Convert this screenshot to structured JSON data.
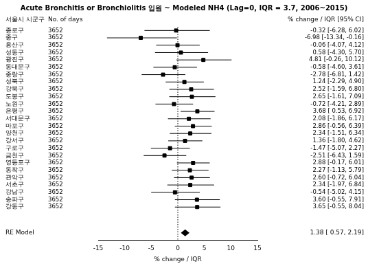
{
  "chart_data": {
    "type": "forest",
    "title": "Acute Bronchitis or Bronchiolitis 입원 ~ Modeled NH4 (Lag=0, IQR = 3.7, 2006~2015)",
    "column_headers": [
      "서울시 시군구",
      "No. of days",
      "% change / IQR [95% CI]"
    ],
    "categories": [
      "종로구",
      "중구",
      "용산구",
      "성동구",
      "광진구",
      "동대문구",
      "중랑구",
      "성북구",
      "강북구",
      "도봉구",
      "노원구",
      "은평구",
      "서대문구",
      "마포구",
      "양천구",
      "강서구",
      "구로구",
      "금천구",
      "영등포구",
      "동작구",
      "관악구",
      "서초구",
      "강남구",
      "송파구",
      "강동구"
    ],
    "days": [
      3652,
      3652,
      3652,
      3652,
      3652,
      3652,
      3652,
      3652,
      3652,
      3652,
      3652,
      3652,
      3652,
      3652,
      3652,
      3652,
      3652,
      3652,
      3652,
      3652,
      3652,
      3652,
      3652,
      3652,
      3652
    ],
    "values": [
      -0.32,
      -6.98,
      -0.06,
      0.58,
      4.81,
      -0.58,
      -2.78,
      1.24,
      2.52,
      2.65,
      -0.72,
      3.68,
      2.08,
      2.86,
      2.34,
      1.36,
      -1.47,
      -2.51,
      2.88,
      2.27,
      2.6,
      2.34,
      -0.54,
      3.6,
      3.65
    ],
    "lower": [
      -6.28,
      -13.34,
      -4.07,
      -4.3,
      -0.26,
      -4.6,
      -6.81,
      -2.29,
      -1.59,
      -1.61,
      -4.21,
      0.53,
      -1.86,
      -0.56,
      -1.51,
      -1.8,
      -5.07,
      -6.43,
      -0.17,
      -1.13,
      -0.72,
      -1.97,
      -5.02,
      -0.55,
      -0.55
    ],
    "upper": [
      6.02,
      -0.16,
      4.12,
      5.7,
      10.12,
      3.61,
      1.42,
      4.9,
      6.8,
      7.09,
      2.89,
      6.92,
      6.17,
      6.39,
      6.34,
      4.62,
      2.27,
      1.59,
      6.01,
      5.79,
      6.04,
      6.84,
      4.15,
      7.91,
      8.04
    ],
    "value_labels": [
      "-0.32 [-6.28, 6.02]",
      "-6.98 [-13.34, -0.16]",
      "-0.06 [-4.07, 4.12]",
      "0.58 [-4.30, 5.70]",
      "4.81 [-0.26, 10.12]",
      "-0.58 [-4.60, 3.61]",
      "-2.78 [-6.81, 1.42]",
      "1.24 [-2.29, 4.90]",
      "2.52 [-1.59, 6.80]",
      "2.65 [-1.61, 7.09]",
      "-0.72 [-4.21, 2.89]",
      "3.68 [ 0.53, 6.92]",
      "2.08 [-1.86, 6.17]",
      "2.86 [-0.56, 6.39]",
      "2.34 [-1.51, 6.34]",
      "1.36 [-1.80, 4.62]",
      "-1.47 [-5.07, 2.27]",
      "-2.51 [-6.43, 1.59]",
      "2.88 [-0.17, 6.01]",
      "2.27 [-1.13, 5.79]",
      "2.60 [-0.72, 6.04]",
      "2.34 [-1.97, 6.84]",
      "-0.54 [-5.02, 4.15]",
      "3.60 [-0.55, 7.91]",
      "3.65 [-0.55, 8.04]"
    ],
    "summary": {
      "name": "RE Model",
      "value": 1.38,
      "lower": 0.57,
      "upper": 2.19,
      "label": "1.38 [ 0.57, 2.19]"
    },
    "xlabel": "% change / IQR",
    "xlim": [
      -15,
      15
    ],
    "xticks": [
      -15,
      -10,
      -5,
      0,
      5,
      10,
      15
    ],
    "reference_line": 0,
    "grid": false,
    "color": "#000000",
    "marker": "square"
  }
}
